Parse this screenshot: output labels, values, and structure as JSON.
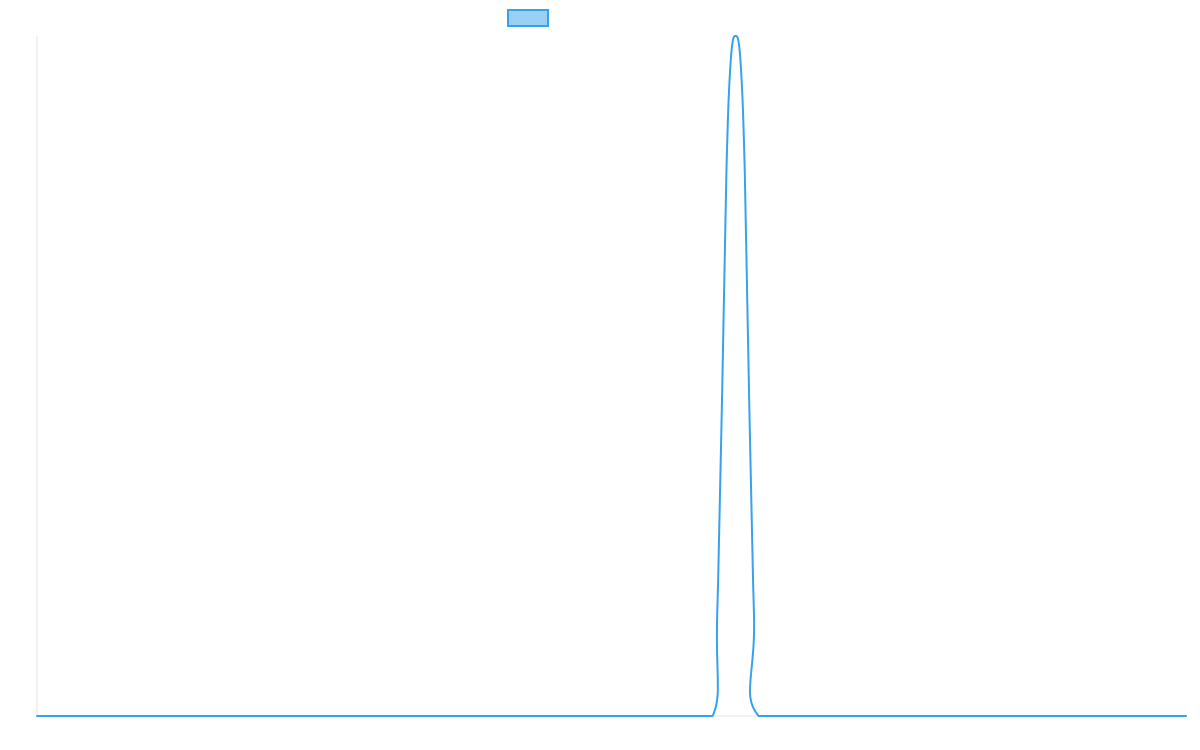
{
  "chart_data": {
    "type": "line",
    "title": "",
    "xlabel": "",
    "ylabel": "",
    "x_range": [
      0,
      100
    ],
    "ylim": [
      0,
      1
    ],
    "grid": false,
    "legend": {
      "placement": "top-center",
      "entries": [
        {
          "label": "",
          "swatch": "box"
        }
      ]
    },
    "series": [
      {
        "color": "#36a2eb",
        "fill_color": "#9ad0f5",
        "points": [
          [
            0,
            0
          ],
          [
            20,
            0
          ],
          [
            40,
            0
          ],
          [
            55,
            0
          ],
          [
            58.8,
            0
          ],
          [
            59.2,
            0.15
          ],
          [
            59.6,
            0.45
          ],
          [
            60.0,
            0.8
          ],
          [
            60.4,
            0.97
          ],
          [
            60.8,
            1.0
          ],
          [
            61.2,
            0.97
          ],
          [
            61.6,
            0.8
          ],
          [
            62.0,
            0.45
          ],
          [
            62.4,
            0.15
          ],
          [
            62.8,
            0
          ],
          [
            70,
            0
          ],
          [
            80,
            0
          ],
          [
            90,
            0
          ],
          [
            100,
            0
          ]
        ]
      }
    ]
  }
}
